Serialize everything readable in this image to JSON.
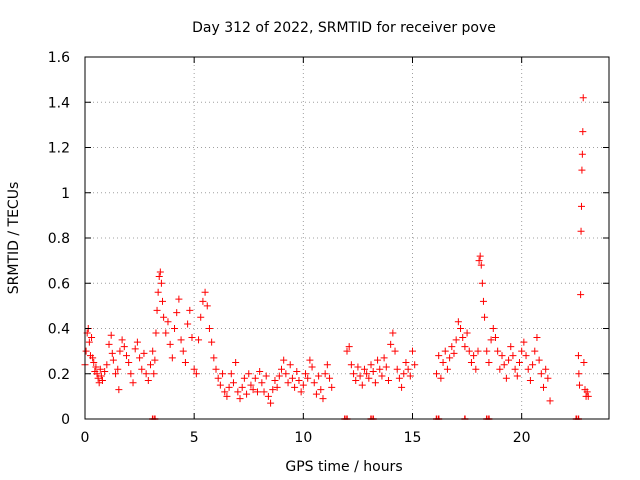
{
  "chart_data": {
    "type": "scatter",
    "title": "Day 312 of 2022, SRMTID for receiver pove",
    "xlabel": "GPS time / hours",
    "ylabel": "SRMTID / TECUs",
    "xlim": [
      0,
      24
    ],
    "ylim": [
      0,
      1.6
    ],
    "x_ticks": [
      0,
      5,
      10,
      15,
      20
    ],
    "y_ticks": [
      0,
      0.2,
      0.4,
      0.6,
      0.8,
      1,
      1.2,
      1.4,
      1.6
    ],
    "x_tick_labels": [
      "0",
      "5",
      "10",
      "15",
      "20"
    ],
    "y_tick_labels": [
      "0",
      "0.2",
      "0.4",
      "0.6",
      "0.8",
      "1",
      "1.2",
      "1.4",
      "1.6"
    ],
    "grid": true,
    "marker": "plus",
    "color": "#ff0000",
    "series": [
      {
        "values": [
          [
            0.0,
            0.24
          ],
          [
            0.05,
            0.3
          ],
          [
            0.1,
            0.38
          ],
          [
            0.15,
            0.4
          ],
          [
            0.2,
            0.34
          ],
          [
            0.25,
            0.28
          ],
          [
            0.3,
            0.36
          ],
          [
            0.35,
            0.27
          ],
          [
            0.4,
            0.25
          ],
          [
            0.45,
            0.21
          ],
          [
            0.5,
            0.23
          ],
          [
            0.55,
            0.2
          ],
          [
            0.6,
            0.18
          ],
          [
            0.65,
            0.16
          ],
          [
            0.7,
            0.22
          ],
          [
            0.75,
            0.19
          ],
          [
            0.8,
            0.17
          ],
          [
            0.9,
            0.21
          ],
          [
            1.0,
            0.24
          ],
          [
            1.1,
            0.33
          ],
          [
            1.2,
            0.37
          ],
          [
            1.25,
            0.29
          ],
          [
            1.3,
            0.26
          ],
          [
            1.4,
            0.2
          ],
          [
            1.5,
            0.22
          ],
          [
            1.55,
            0.13
          ],
          [
            1.6,
            0.3
          ],
          [
            1.7,
            0.35
          ],
          [
            1.8,
            0.32
          ],
          [
            1.9,
            0.28
          ],
          [
            2.0,
            0.25
          ],
          [
            2.1,
            0.2
          ],
          [
            2.2,
            0.16
          ],
          [
            2.3,
            0.31
          ],
          [
            2.4,
            0.34
          ],
          [
            2.5,
            0.27
          ],
          [
            2.6,
            0.22
          ],
          [
            2.7,
            0.29
          ],
          [
            2.8,
            0.2
          ],
          [
            2.9,
            0.17
          ],
          [
            3.0,
            0.24
          ],
          [
            3.1,
            0.3
          ],
          [
            3.15,
            0.2
          ],
          [
            3.2,
            0.26
          ],
          [
            3.25,
            0.38
          ],
          [
            3.3,
            0.48
          ],
          [
            3.35,
            0.56
          ],
          [
            3.4,
            0.63
          ],
          [
            3.45,
            0.65
          ],
          [
            3.5,
            0.6
          ],
          [
            3.55,
            0.52
          ],
          [
            3.6,
            0.45
          ],
          [
            3.7,
            0.38
          ],
          [
            3.8,
            0.43
          ],
          [
            3.9,
            0.33
          ],
          [
            4.0,
            0.27
          ],
          [
            4.1,
            0.4
          ],
          [
            4.2,
            0.47
          ],
          [
            4.3,
            0.53
          ],
          [
            4.4,
            0.35
          ],
          [
            4.5,
            0.3
          ],
          [
            4.6,
            0.25
          ],
          [
            4.7,
            0.42
          ],
          [
            4.8,
            0.48
          ],
          [
            4.9,
            0.36
          ],
          [
            5.0,
            0.22
          ],
          [
            5.1,
            0.2
          ],
          [
            5.2,
            0.35
          ],
          [
            5.3,
            0.45
          ],
          [
            5.4,
            0.52
          ],
          [
            5.5,
            0.56
          ],
          [
            5.6,
            0.5
          ],
          [
            5.7,
            0.4
          ],
          [
            5.8,
            0.34
          ],
          [
            5.9,
            0.27
          ],
          [
            6.0,
            0.22
          ],
          [
            6.1,
            0.18
          ],
          [
            6.2,
            0.15
          ],
          [
            6.3,
            0.2
          ],
          [
            6.4,
            0.12
          ],
          [
            6.5,
            0.1
          ],
          [
            6.6,
            0.14
          ],
          [
            6.7,
            0.2
          ],
          [
            6.8,
            0.16
          ],
          [
            6.9,
            0.25
          ],
          [
            7.0,
            0.12
          ],
          [
            7.1,
            0.09
          ],
          [
            7.2,
            0.14
          ],
          [
            7.3,
            0.18
          ],
          [
            7.4,
            0.11
          ],
          [
            7.5,
            0.2
          ],
          [
            7.6,
            0.15
          ],
          [
            7.7,
            0.13
          ],
          [
            7.8,
            0.18
          ],
          [
            7.9,
            0.12
          ],
          [
            8.0,
            0.21
          ],
          [
            8.1,
            0.16
          ],
          [
            8.2,
            0.12
          ],
          [
            8.3,
            0.19
          ],
          [
            8.4,
            0.1
          ],
          [
            8.5,
            0.07
          ],
          [
            8.6,
            0.13
          ],
          [
            8.7,
            0.17
          ],
          [
            8.8,
            0.14
          ],
          [
            8.9,
            0.19
          ],
          [
            9.0,
            0.22
          ],
          [
            9.1,
            0.26
          ],
          [
            9.2,
            0.2
          ],
          [
            9.3,
            0.16
          ],
          [
            9.4,
            0.24
          ],
          [
            9.5,
            0.18
          ],
          [
            9.6,
            0.14
          ],
          [
            9.7,
            0.21
          ],
          [
            9.8,
            0.17
          ],
          [
            9.9,
            0.12
          ],
          [
            10.0,
            0.15
          ],
          [
            10.1,
            0.2
          ],
          [
            10.2,
            0.18
          ],
          [
            10.3,
            0.26
          ],
          [
            10.4,
            0.23
          ],
          [
            10.5,
            0.16
          ],
          [
            10.6,
            0.11
          ],
          [
            10.7,
            0.19
          ],
          [
            10.8,
            0.13
          ],
          [
            10.9,
            0.09
          ],
          [
            11.0,
            0.2
          ],
          [
            11.1,
            0.24
          ],
          [
            11.2,
            0.18
          ],
          [
            11.3,
            0.14
          ],
          [
            12.0,
            0.3
          ],
          [
            12.1,
            0.32
          ],
          [
            12.2,
            0.24
          ],
          [
            12.3,
            0.2
          ],
          [
            12.4,
            0.17
          ],
          [
            12.5,
            0.23
          ],
          [
            12.6,
            0.19
          ],
          [
            12.7,
            0.15
          ],
          [
            12.8,
            0.22
          ],
          [
            12.9,
            0.2
          ],
          [
            13.0,
            0.18
          ],
          [
            13.1,
            0.24
          ],
          [
            13.2,
            0.21
          ],
          [
            13.3,
            0.16
          ],
          [
            13.4,
            0.26
          ],
          [
            13.5,
            0.22
          ],
          [
            13.6,
            0.19
          ],
          [
            13.7,
            0.27
          ],
          [
            13.8,
            0.23
          ],
          [
            13.9,
            0.17
          ],
          [
            14.0,
            0.33
          ],
          [
            14.1,
            0.38
          ],
          [
            14.2,
            0.3
          ],
          [
            14.3,
            0.22
          ],
          [
            14.4,
            0.18
          ],
          [
            14.5,
            0.14
          ],
          [
            14.6,
            0.2
          ],
          [
            14.7,
            0.25
          ],
          [
            14.8,
            0.22
          ],
          [
            14.9,
            0.19
          ],
          [
            15.0,
            0.3
          ],
          [
            15.1,
            0.24
          ],
          [
            16.1,
            0.2
          ],
          [
            16.2,
            0.28
          ],
          [
            16.3,
            0.18
          ],
          [
            16.4,
            0.25
          ],
          [
            16.5,
            0.3
          ],
          [
            16.6,
            0.22
          ],
          [
            16.7,
            0.27
          ],
          [
            16.8,
            0.32
          ],
          [
            16.9,
            0.29
          ],
          [
            17.0,
            0.35
          ],
          [
            17.1,
            0.43
          ],
          [
            17.2,
            0.4
          ],
          [
            17.3,
            0.36
          ],
          [
            17.4,
            0.32
          ],
          [
            17.5,
            0.38
          ],
          [
            17.6,
            0.3
          ],
          [
            17.7,
            0.25
          ],
          [
            17.8,
            0.28
          ],
          [
            17.9,
            0.22
          ],
          [
            18.0,
            0.3
          ],
          [
            18.05,
            0.7
          ],
          [
            18.1,
            0.72
          ],
          [
            18.15,
            0.68
          ],
          [
            18.2,
            0.6
          ],
          [
            18.25,
            0.52
          ],
          [
            18.3,
            0.45
          ],
          [
            18.4,
            0.3
          ],
          [
            18.5,
            0.25
          ],
          [
            18.6,
            0.35
          ],
          [
            18.7,
            0.4
          ],
          [
            18.8,
            0.36
          ],
          [
            18.9,
            0.3
          ],
          [
            19.0,
            0.22
          ],
          [
            19.1,
            0.28
          ],
          [
            19.2,
            0.24
          ],
          [
            19.3,
            0.18
          ],
          [
            19.4,
            0.26
          ],
          [
            19.5,
            0.32
          ],
          [
            19.6,
            0.28
          ],
          [
            19.7,
            0.22
          ],
          [
            19.8,
            0.19
          ],
          [
            19.9,
            0.25
          ],
          [
            20.0,
            0.3
          ],
          [
            20.1,
            0.34
          ],
          [
            20.2,
            0.28
          ],
          [
            20.3,
            0.22
          ],
          [
            20.4,
            0.17
          ],
          [
            20.5,
            0.24
          ],
          [
            20.6,
            0.3
          ],
          [
            20.7,
            0.36
          ],
          [
            20.8,
            0.26
          ],
          [
            20.9,
            0.2
          ],
          [
            21.0,
            0.14
          ],
          [
            21.1,
            0.22
          ],
          [
            21.2,
            0.18
          ],
          [
            21.3,
            0.08
          ],
          [
            22.6,
            0.28
          ],
          [
            22.62,
            0.2
          ],
          [
            22.65,
            0.15
          ],
          [
            22.7,
            0.55
          ],
          [
            22.72,
            0.83
          ],
          [
            22.74,
            0.94
          ],
          [
            22.76,
            1.1
          ],
          [
            22.78,
            1.17
          ],
          [
            22.8,
            1.27
          ],
          [
            22.82,
            1.42
          ],
          [
            22.85,
            0.25
          ],
          [
            22.9,
            0.13
          ],
          [
            22.95,
            0.1
          ],
          [
            23.0,
            0.12
          ],
          [
            23.05,
            0.1
          ]
        ]
      }
    ],
    "zero_markers_x": [
      3.1,
      3.2,
      11.9,
      12.0,
      13.1,
      13.2,
      16.1,
      16.2,
      17.4,
      18.4,
      18.5,
      22.5,
      22.6
    ]
  }
}
